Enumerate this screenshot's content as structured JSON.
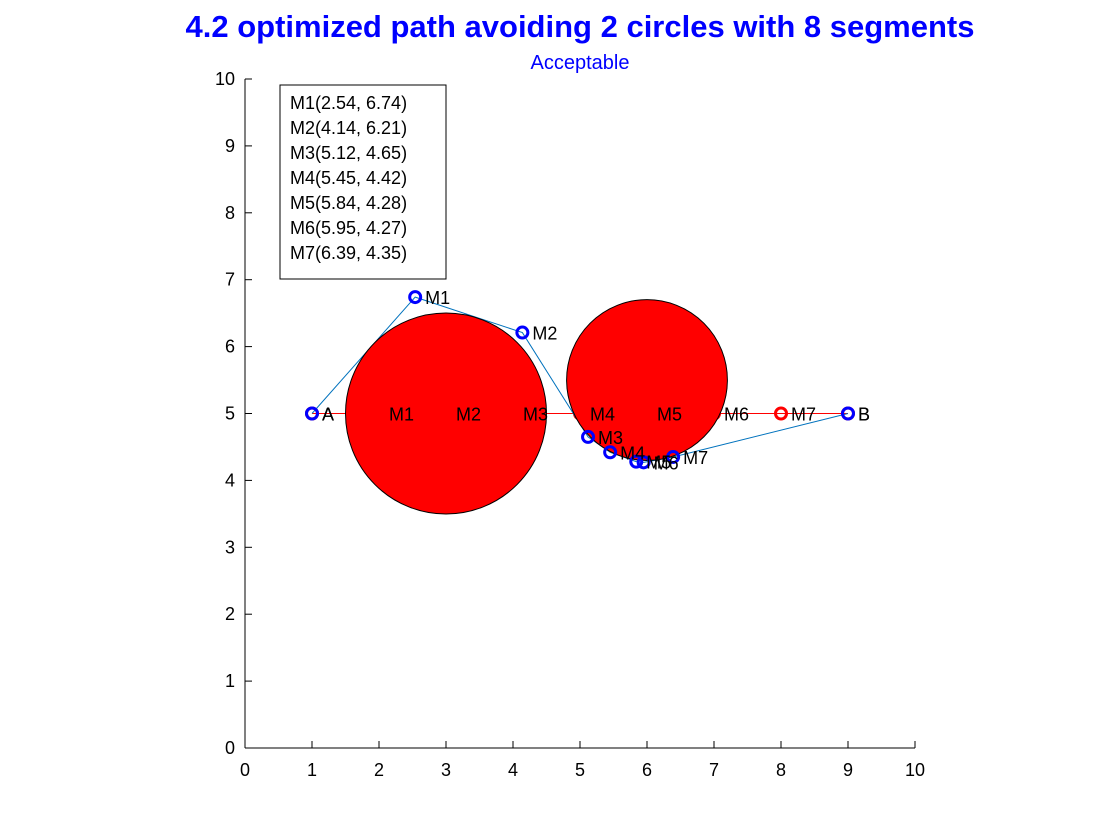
{
  "chart_data": {
    "type": "scatter",
    "title": "4.2 optimized path avoiding 2 circles with 8 segments",
    "subtitle": "Acceptable",
    "xlim": [
      0,
      10
    ],
    "ylim": [
      0,
      10
    ],
    "xticks": [
      0,
      1,
      2,
      3,
      4,
      5,
      6,
      7,
      8,
      9,
      10
    ],
    "yticks": [
      0,
      1,
      2,
      3,
      4,
      5,
      6,
      7,
      8,
      9,
      10
    ],
    "grid": false,
    "legend_position": "top-left",
    "legend_entries": [
      "M1(2.54, 6.74)",
      "M2(4.14, 6.21)",
      "M3(5.12, 4.65)",
      "M4(5.45, 4.42)",
      "M5(5.84, 4.28)",
      "M6(5.95, 4.27)",
      "M7(6.39, 4.35)"
    ],
    "circles": [
      {
        "cx": 3,
        "cy": 5,
        "r": 1.5,
        "color": "#ff0000"
      },
      {
        "cx": 6,
        "cy": 5.5,
        "r": 1.2,
        "color": "#ff0000"
      }
    ],
    "initial_path": {
      "color": "#ff0000",
      "points": [
        {
          "label": "A",
          "x": 1,
          "y": 5
        },
        {
          "label": "M1",
          "x": 2,
          "y": 5
        },
        {
          "label": "M2",
          "x": 3,
          "y": 5
        },
        {
          "label": "M3",
          "x": 4,
          "y": 5
        },
        {
          "label": "M4",
          "x": 5,
          "y": 5
        },
        {
          "label": "M5",
          "x": 6,
          "y": 5
        },
        {
          "label": "M6",
          "x": 7,
          "y": 5
        },
        {
          "label": "M7",
          "x": 8,
          "y": 5
        },
        {
          "label": "B",
          "x": 9,
          "y": 5
        }
      ]
    },
    "optimized_path": {
      "color": "#0000ff",
      "line_color": "#0072bd",
      "points": [
        {
          "label": "A",
          "x": 1,
          "y": 5
        },
        {
          "label": "M1",
          "x": 2.54,
          "y": 6.74
        },
        {
          "label": "M2",
          "x": 4.14,
          "y": 6.21
        },
        {
          "label": "M3",
          "x": 5.12,
          "y": 4.65
        },
        {
          "label": "M4",
          "x": 5.45,
          "y": 4.42
        },
        {
          "label": "M5",
          "x": 5.84,
          "y": 4.28
        },
        {
          "label": "M6",
          "x": 5.95,
          "y": 4.27
        },
        {
          "label": "M7",
          "x": 6.39,
          "y": 4.35
        },
        {
          "label": "B",
          "x": 9,
          "y": 5
        }
      ]
    }
  }
}
